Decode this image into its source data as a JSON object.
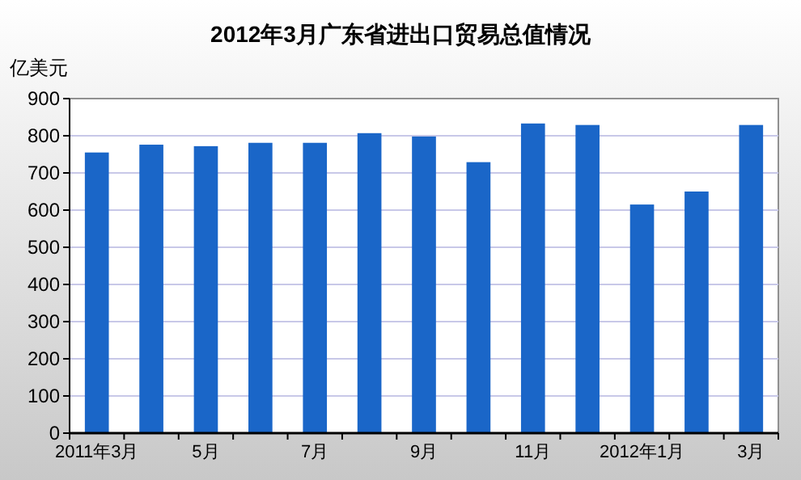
{
  "chart_data": {
    "type": "bar",
    "title": "2012年3月广东省进出口贸易总值情况",
    "ylabel": "亿美元",
    "categories": [
      "2011年3月",
      null,
      "5月",
      null,
      "7月",
      null,
      "9月",
      null,
      "11月",
      null,
      "2012年1月",
      null,
      "3月"
    ],
    "values": [
      755,
      776,
      772,
      781,
      781,
      807,
      798,
      729,
      833,
      829,
      615,
      650,
      829
    ],
    "color": "#1a66c8",
    "ylim": [
      0,
      900
    ],
    "yticks": [
      0,
      100,
      200,
      300,
      400,
      500,
      600,
      700,
      800,
      900
    ],
    "grid": "y"
  }
}
